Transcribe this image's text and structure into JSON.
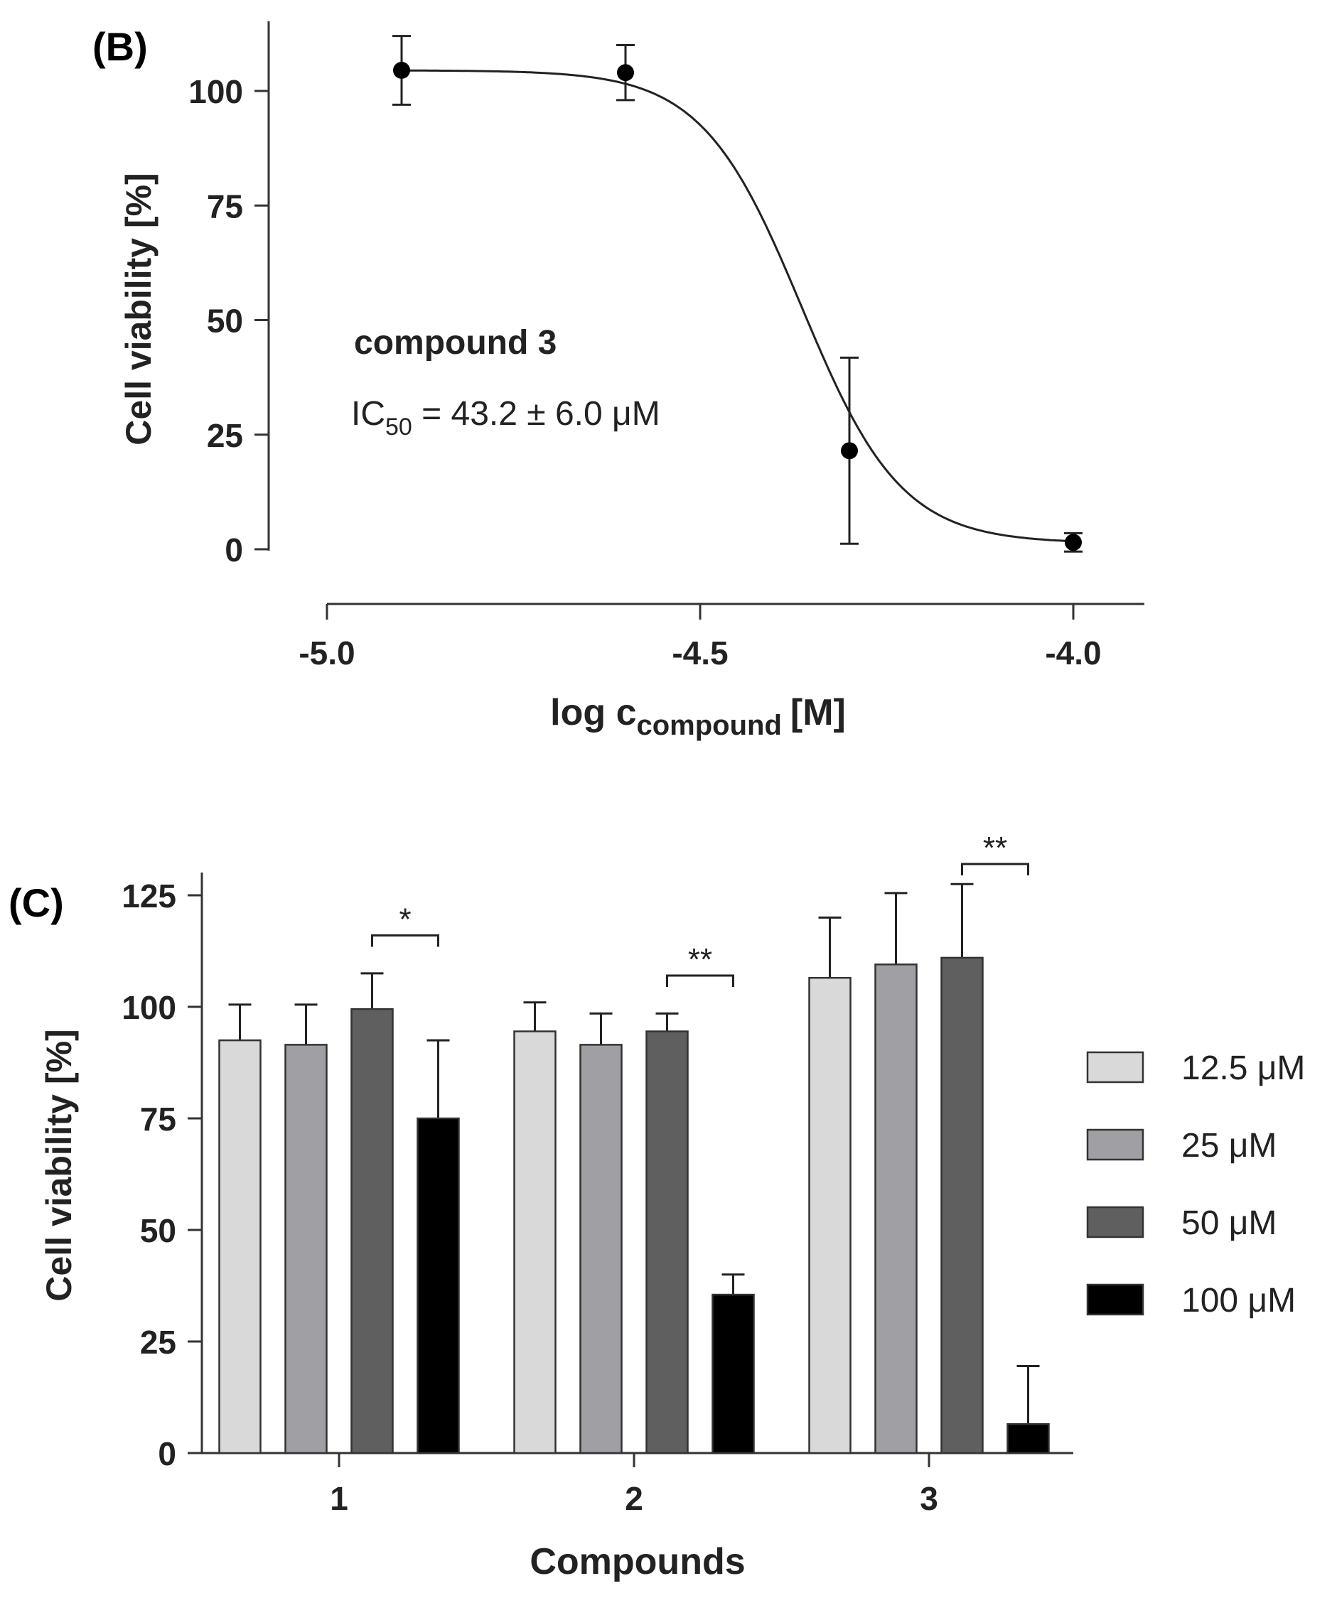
{
  "chart_data": [
    {
      "type": "scatter",
      "panel_label": "(B)",
      "title": "",
      "xlabel": "log c",
      "xlabel_sub": "compound",
      "xlabel_unit": "[M]",
      "ylabel": "Cell viability [%]",
      "xlim": [
        -5.05,
        -3.9
      ],
      "ylim": [
        0,
        110
      ],
      "xticks": [
        -5.0,
        -4.5,
        -4.0
      ],
      "xtick_labels": [
        "-5.0",
        "-4.5",
        "-4.0"
      ],
      "yticks": [
        0,
        25,
        50,
        75,
        100
      ],
      "ytick_labels": [
        "0",
        "25",
        "50",
        "75",
        "100"
      ],
      "grid": false,
      "points": [
        {
          "x": -4.9,
          "y": 104.5,
          "err": 7.5
        },
        {
          "x": -4.6,
          "y": 104.0,
          "err": 6.0
        },
        {
          "x": -4.3,
          "y": 21.5,
          "err": 20.3
        },
        {
          "x": -4.0,
          "y": 1.5,
          "err": 2.0
        }
      ],
      "fit": {
        "model": "four-parameter logistic",
        "top": 104.5,
        "bottom": 1.3,
        "logIC50": -4.364,
        "hill": -6.5
      },
      "annotation": {
        "compound": "compound 3",
        "ic50_prefix": "IC",
        "ic50_sub": "50",
        "ic50_value": " = 43.2 ± 6.0 μM"
      }
    },
    {
      "type": "bar",
      "panel_label": "(C)",
      "title": "",
      "xlabel": "Compounds",
      "ylabel": "Cell viability [%]",
      "ylim": [
        0,
        130
      ],
      "yticks": [
        0,
        25,
        50,
        75,
        100,
        125
      ],
      "ytick_labels": [
        "0",
        "25",
        "50",
        "75",
        "100",
        "125"
      ],
      "grid": false,
      "categories": [
        "1",
        "2",
        "3"
      ],
      "legend_position": "right",
      "series": [
        {
          "name": "12.5 μM",
          "color": "#d9d9d9",
          "values": [
            92.5,
            94.5,
            106.5
          ],
          "errors": [
            8.0,
            6.5,
            13.5
          ]
        },
        {
          "name": "25 μM",
          "color": "#a0a0a4",
          "values": [
            91.5,
            91.5,
            109.5
          ],
          "errors": [
            9.0,
            7.0,
            16.0
          ]
        },
        {
          "name": "50 μM",
          "color": "#5f5f5f",
          "values": [
            99.5,
            94.5,
            111.0
          ],
          "errors": [
            8.0,
            4.0,
            16.5
          ]
        },
        {
          "name": "100 μM",
          "color": "#000000",
          "values": [
            75.0,
            35.5,
            6.5
          ],
          "errors": [
            17.5,
            4.5,
            13.0
          ]
        }
      ],
      "significance": [
        {
          "category": "1",
          "label": "*",
          "height": 116
        },
        {
          "category": "2",
          "label": "**",
          "height": 107
        },
        {
          "category": "3",
          "label": "**",
          "height": 132
        }
      ]
    }
  ]
}
